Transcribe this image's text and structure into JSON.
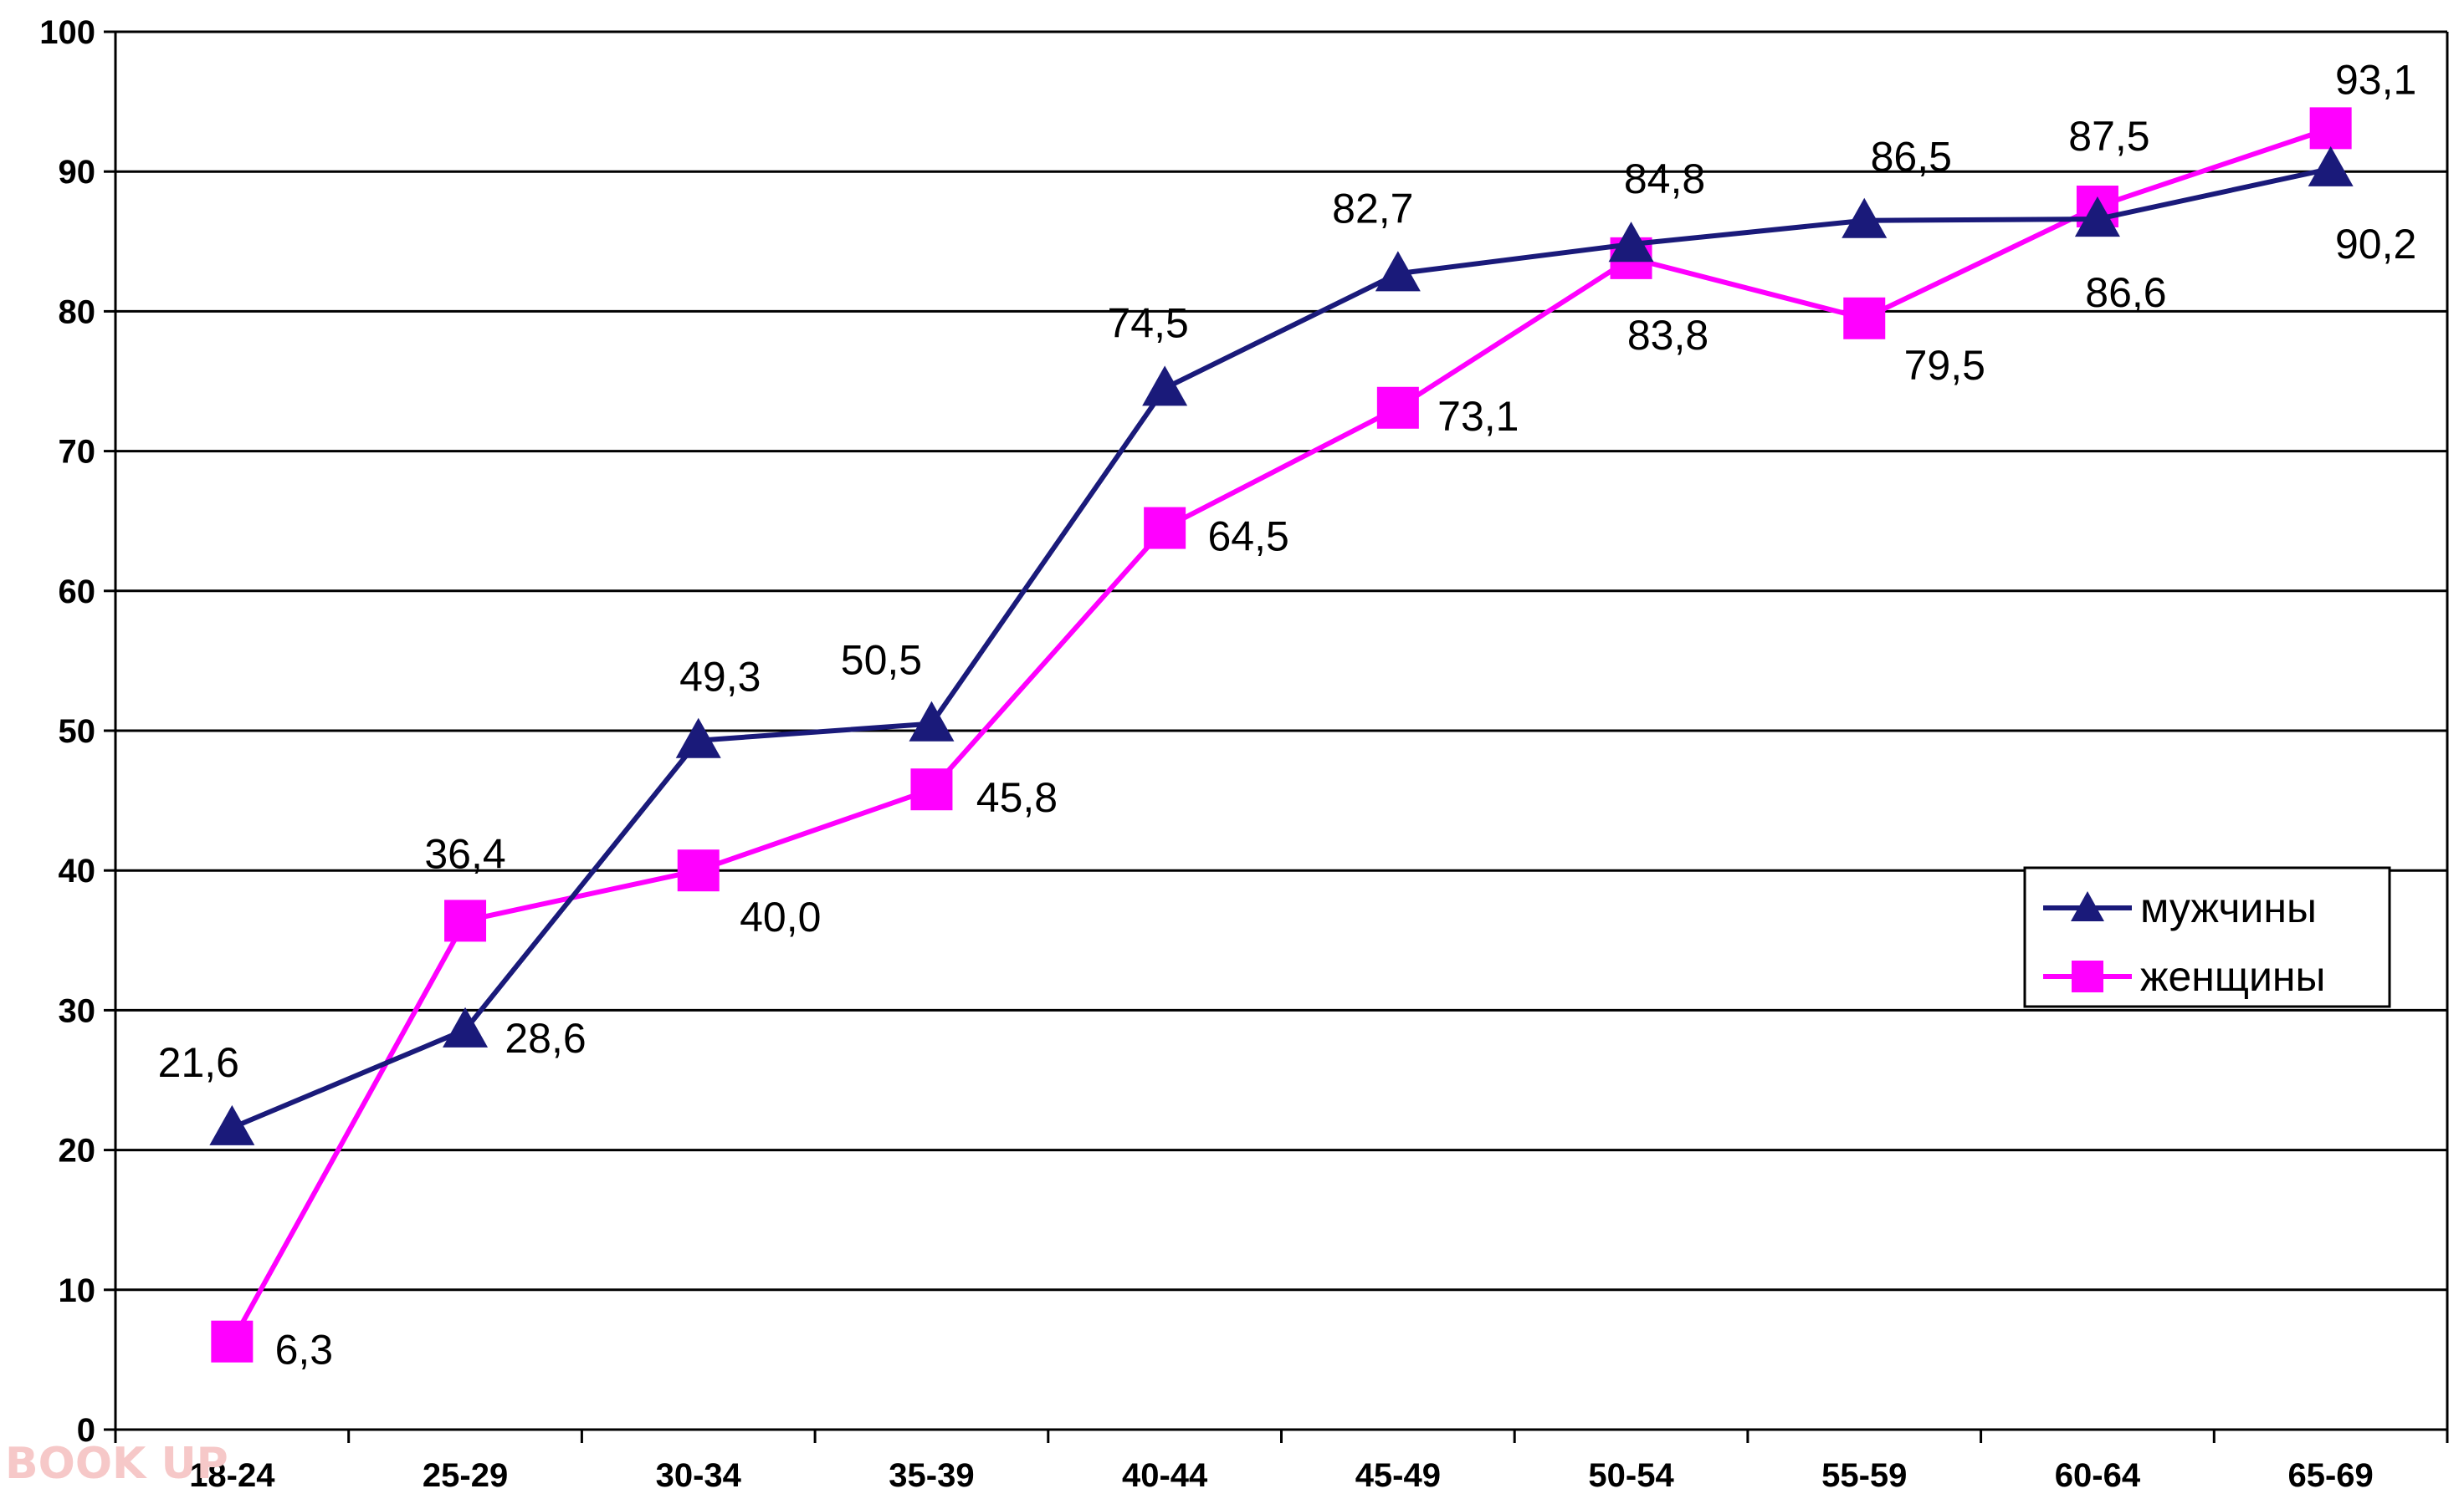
{
  "watermark": "BOOK UP",
  "chart_data": {
    "type": "line",
    "title": "",
    "xlabel": "",
    "ylabel": "",
    "categories": [
      "18-24",
      "25-29",
      "30-34",
      "35-39",
      "40-44",
      "45-49",
      "50-54",
      "55-59",
      "60-64",
      "65-69"
    ],
    "ylim": [
      0,
      100
    ],
    "yticks": [
      0,
      10,
      20,
      30,
      40,
      50,
      60,
      70,
      80,
      90,
      100
    ],
    "grid": true,
    "legend_position": "right",
    "series": [
      {
        "name": "мужчины",
        "color": "#1a1a7a",
        "marker": "triangle",
        "values": [
          21.6,
          28.6,
          49.3,
          50.5,
          74.5,
          82.7,
          84.8,
          86.5,
          86.6,
          90.2
        ],
        "labels": [
          "21,6",
          "28,6",
          "49,3",
          "50,5",
          "74,5",
          "82,7",
          "84,8",
          "86,5",
          "86,6",
          "90,2"
        ]
      },
      {
        "name": "женщины",
        "color": "#ff00ff",
        "marker": "square",
        "values": [
          6.3,
          36.4,
          40.0,
          45.8,
          64.5,
          73.1,
          83.8,
          79.5,
          87.5,
          93.1
        ],
        "labels": [
          "6,3",
          "36,4",
          "40,0",
          "45,8",
          "64,5",
          "73,1",
          "83,8",
          "79,5",
          "87,5",
          "93,1"
        ]
      }
    ]
  }
}
